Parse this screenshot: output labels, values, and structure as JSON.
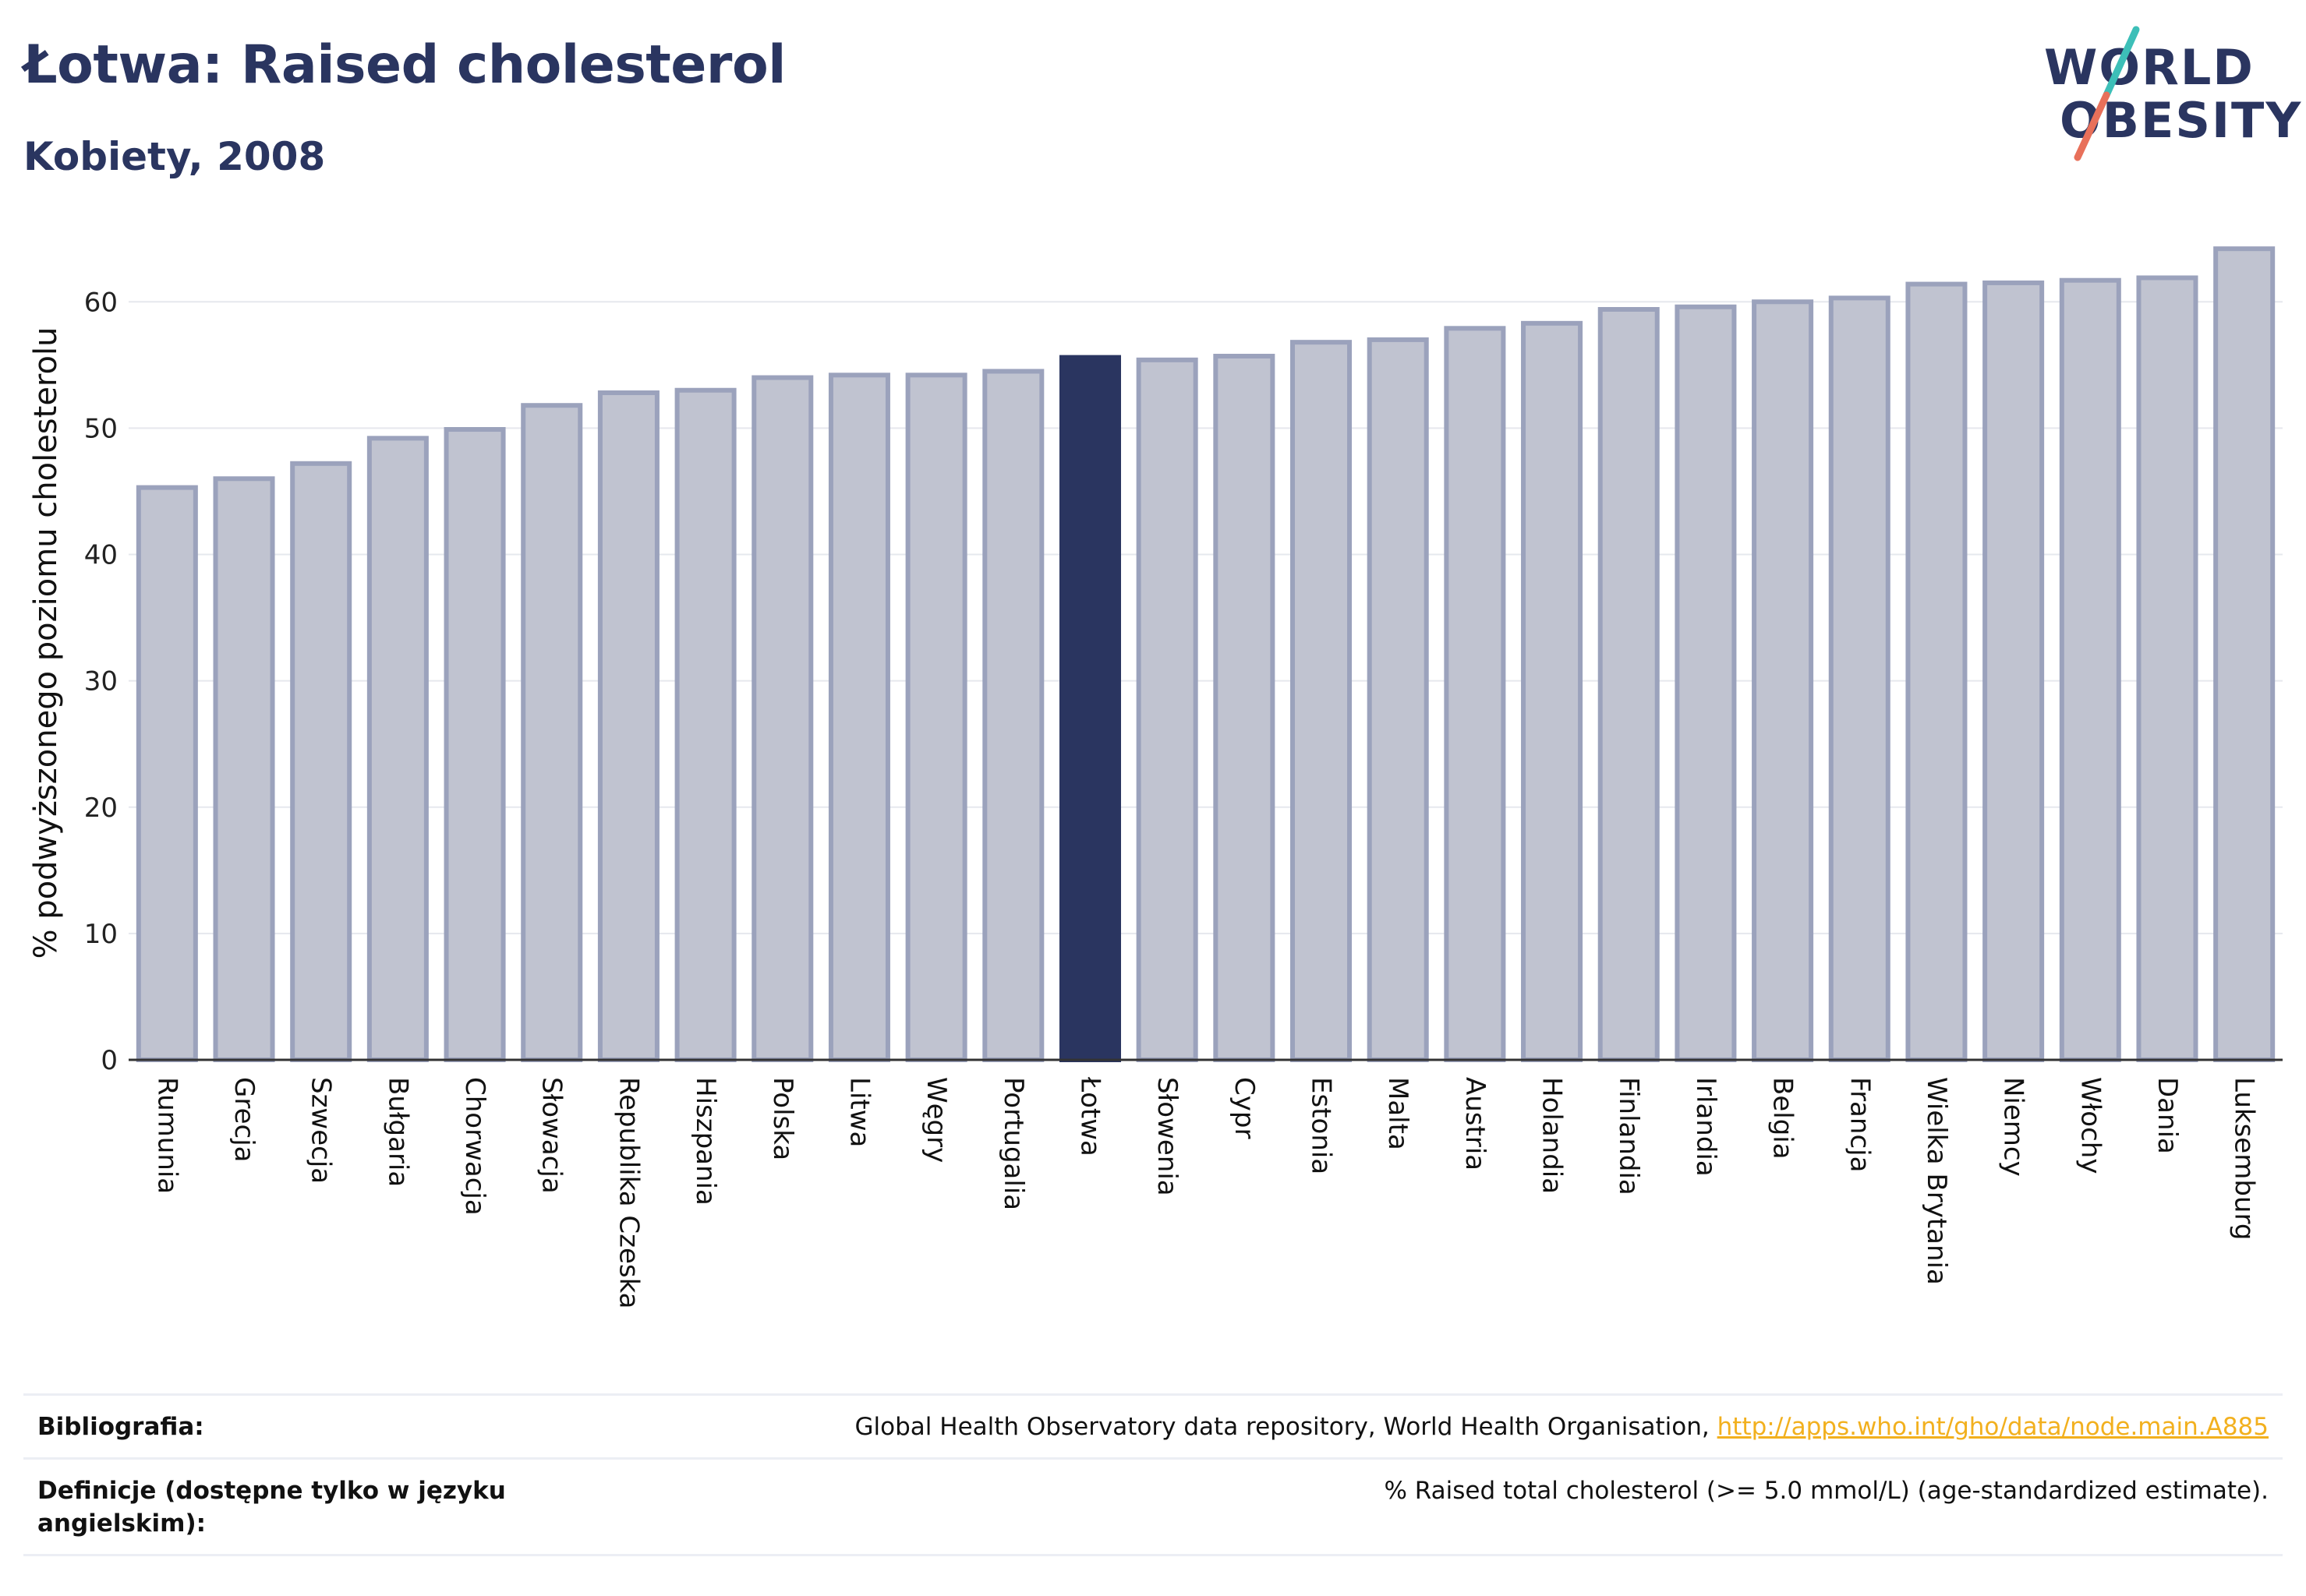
{
  "header": {
    "title": "Łotwa: Raised cholesterol",
    "subtitle": "Kobiety, 2008"
  },
  "logo": {
    "line1": "WORLD",
    "line2": "OBESITY",
    "colors": {
      "text": "#2a3560",
      "slash_top": "#3dbfb8",
      "slash_bottom": "#e8705a"
    }
  },
  "colors": {
    "bar_fill": "#c0c3d0",
    "bar_stroke": "#9ba2bc",
    "highlight": "#2a3560",
    "grid": "#e6e8ee",
    "axis": "#333333",
    "link": "#f2b01e"
  },
  "chart_data": {
    "type": "bar",
    "categories": [
      "Rumunia",
      "Grecja",
      "Szwecja",
      "Bułgaria",
      "Chorwacja",
      "Słowacja",
      "Republika Czeska",
      "Hiszpania",
      "Polska",
      "Litwa",
      "Węgry",
      "Portugalia",
      "Łotwa",
      "Słowenia",
      "Cypr",
      "Estonia",
      "Malta",
      "Austria",
      "Holandia",
      "Finlandia",
      "Irlandia",
      "Belgia",
      "Francja",
      "Wielka Brytania",
      "Niemcy",
      "Włochy",
      "Dania",
      "Luksemburg"
    ],
    "values": [
      45.3,
      46.0,
      47.2,
      49.2,
      49.9,
      51.8,
      52.8,
      53.0,
      54.0,
      54.2,
      54.2,
      54.5,
      55.6,
      55.4,
      55.7,
      56.8,
      57.0,
      57.9,
      58.3,
      59.4,
      59.6,
      60.0,
      60.3,
      61.4,
      61.5,
      61.7,
      61.9,
      64.2
    ],
    "highlight": "Łotwa",
    "ylabel": "% podwyższonego poziomu cholesterolu",
    "xlabel": "",
    "yticks": [
      0,
      10,
      20,
      30,
      40,
      50,
      60
    ],
    "ylim": [
      0,
      66
    ],
    "grid": true
  },
  "footer": {
    "bibliography_label": "Bibliografia:",
    "bibliography_text": "Global Health Observatory data repository, World Health Organisation, ",
    "bibliography_link": "http://apps.who.int/gho/data/node.main.A885",
    "definition_label": "Definicje (dostępne tylko w języku angielskim):",
    "definition_text": "% Raised total cholesterol (>= 5.0 mmol/L) (age-standardized estimate)."
  }
}
